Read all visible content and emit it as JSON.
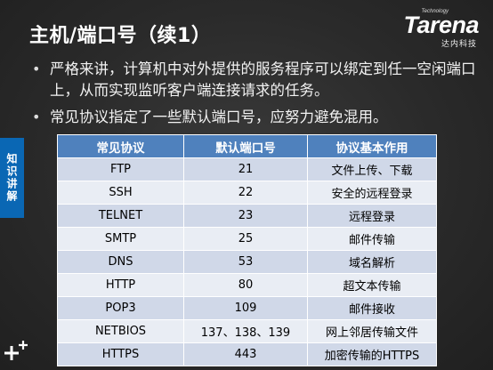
{
  "slide": {
    "title": "主机/端口号（续1）",
    "brand": {
      "technology": "Technology",
      "name": "Tarena",
      "chinese": "达内科技"
    },
    "side_tab": "知识讲解",
    "bullets": [
      "严格来讲，计算机中对外提供的服务程序可以绑定到任一空闲端口上，从而实现监听客户端连接请求的任务。",
      "常见协议指定了一些默认端口号，应努力避免混用。"
    ],
    "table": {
      "headers": [
        "常见协议",
        "默认端口号",
        "协议基本作用"
      ],
      "rows": [
        [
          "FTP",
          "21",
          "文件上传、下载"
        ],
        [
          "SSH",
          "22",
          "安全的远程登录"
        ],
        [
          "TELNET",
          "23",
          "远程登录"
        ],
        [
          "SMTP",
          "25",
          "邮件传输"
        ],
        [
          "DNS",
          "53",
          "域名解析"
        ],
        [
          "HTTP",
          "80",
          "超文本传输"
        ],
        [
          "POP3",
          "109",
          "邮件接收"
        ],
        [
          "NETBIOS",
          "137、138、139",
          "网上邻居传输文件"
        ],
        [
          "HTTPS",
          "443",
          "加密传输的HTTPS"
        ]
      ]
    },
    "colors": {
      "header_bg": "#4f81bd",
      "row_odd": "#d0d8e8",
      "row_even": "#e9edf4",
      "side_tab_bg": "#0a67b4"
    },
    "icons": [
      "plus-icon"
    ]
  }
}
